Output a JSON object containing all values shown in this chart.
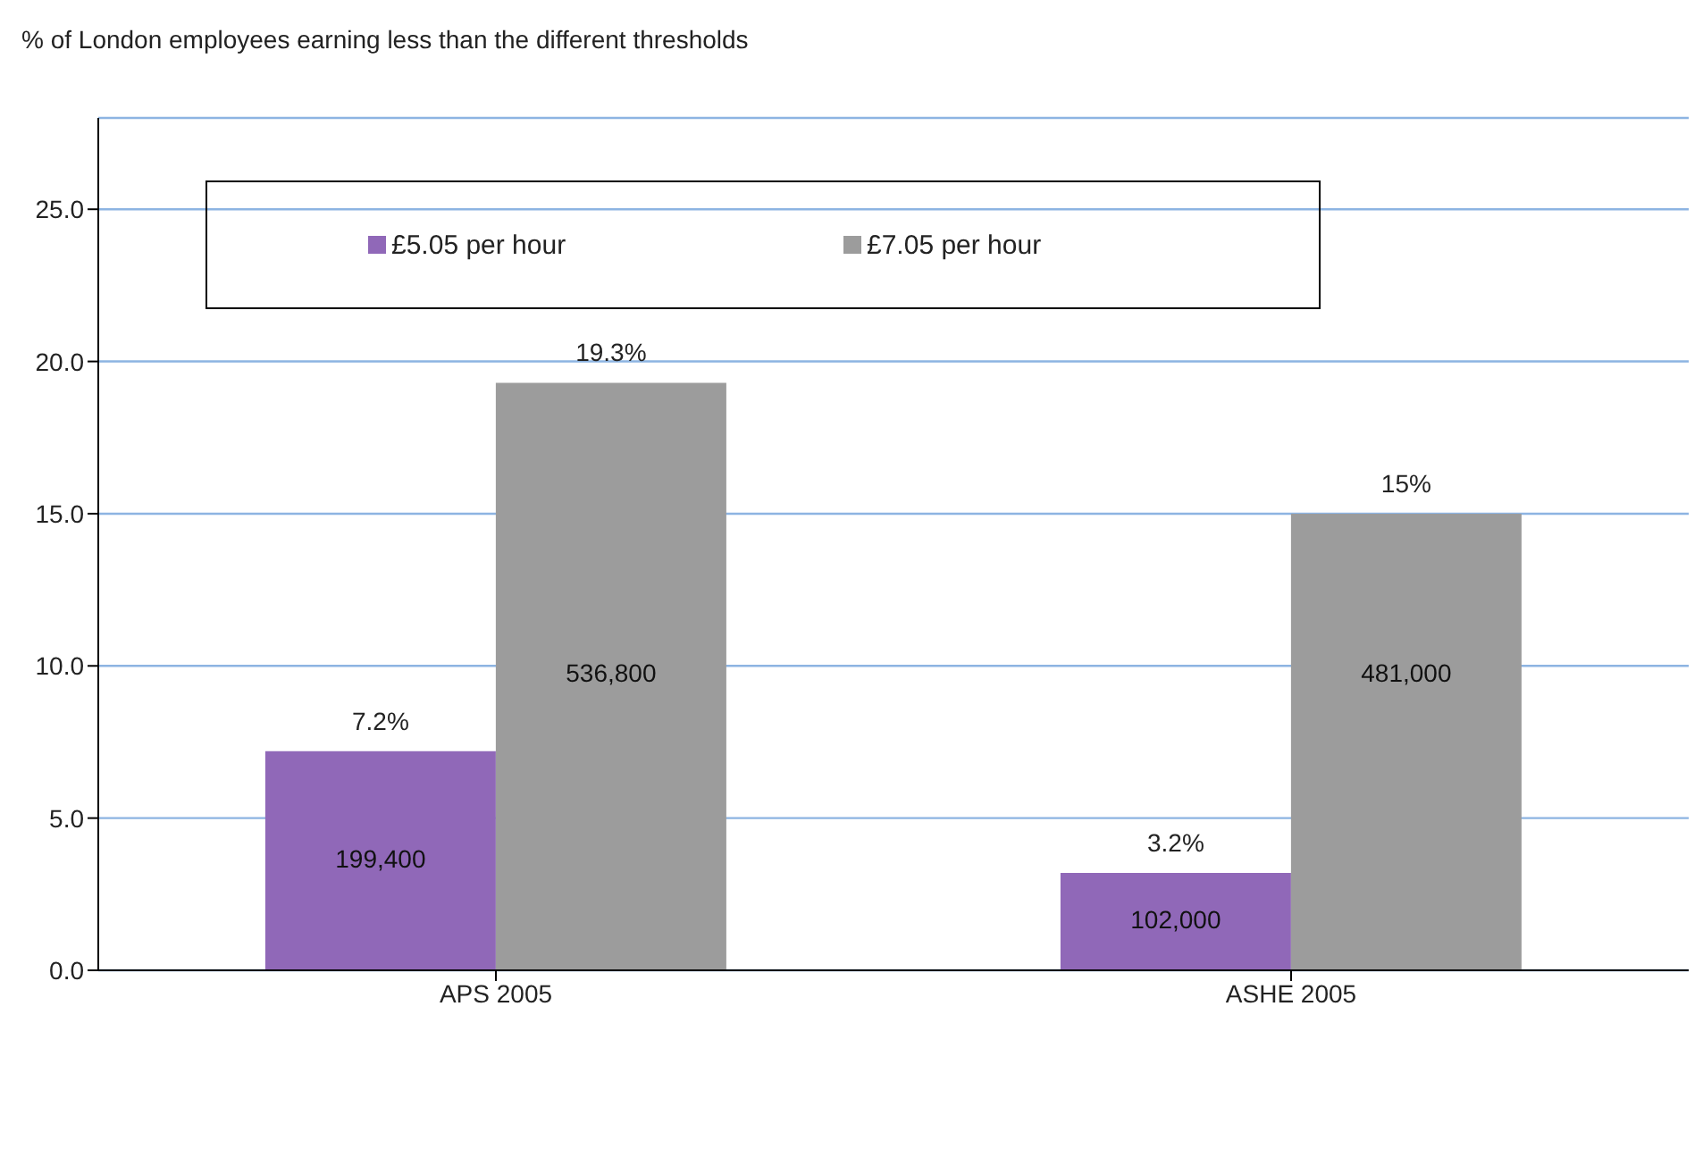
{
  "chart_data": {
    "type": "bar",
    "title": "% of London employees earning less than the different thresholds",
    "categories": [
      "APS 2005",
      "ASHE 2005"
    ],
    "series": [
      {
        "name": "£5.05 per hour",
        "color": "#9068b8",
        "values": [
          7.2,
          3.2
        ],
        "value_labels": [
          "7.2%",
          "3.2%"
        ]
      },
      {
        "name": "£7.05 per hour",
        "color": "#9c9c9c",
        "values": [
          19.3,
          15
        ],
        "value_labels": [
          "19.3%",
          "15%"
        ]
      }
    ],
    "annotations": [
      {
        "text": "199,400",
        "x": "APS 2005",
        "y": 3.6
      },
      {
        "text": "536,800",
        "x": "APS 2005",
        "y": 9.7
      },
      {
        "text": "102,000",
        "x": "ASHE 2005",
        "y": 1.6
      },
      {
        "text": "481,000",
        "x": "ASHE 2005",
        "y": 9.7
      }
    ],
    "ylim": [
      0,
      28
    ],
    "yticks": [
      {
        "value": 0,
        "label": "0.0"
      },
      {
        "value": 5,
        "label": "5.0"
      },
      {
        "value": 10,
        "label": "10.0"
      },
      {
        "value": 15,
        "label": "15.0"
      },
      {
        "value": 20,
        "label": "20.0"
      },
      {
        "value": 25,
        "label": "25.0"
      }
    ],
    "grid": "y",
    "legend": "top"
  }
}
